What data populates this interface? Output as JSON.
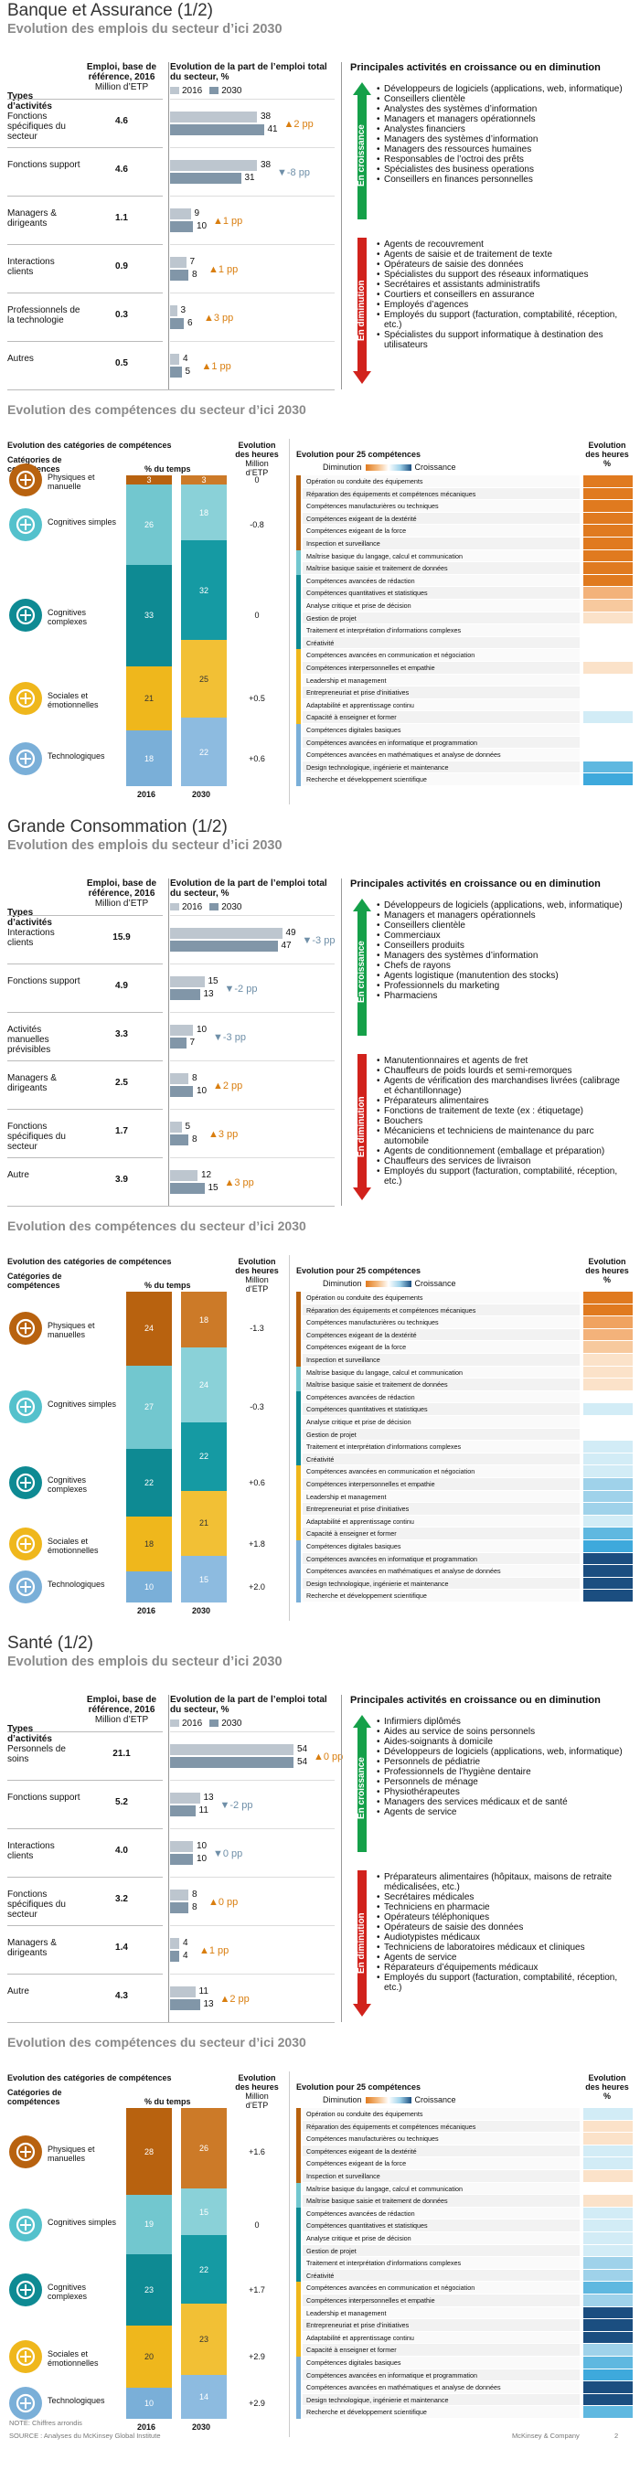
{
  "sections": [
    {
      "title": "Banque et Assurance (1/2)",
      "emploi_title": "Evolution des emplois du secteur d’ici 2030",
      "comp_title": "Evolution des compétences du secteur d’ici 2030",
      "emploi_rows": [
        {
          "label": "Fonctions spécifiques du secteur",
          "base": "4.6",
          "v2016": 38,
          "v2030": 41,
          "delta": "▲2 pp",
          "dir": "up"
        },
        {
          "label": "Fonctions support",
          "base": "4.6",
          "v2016": 38,
          "v2030": 31,
          "delta": "▼-8 pp",
          "dir": "down"
        },
        {
          "label": "Managers & dirigeants",
          "base": "1.1",
          "v2016": 9,
          "v2030": 10,
          "delta": "▲1 pp",
          "dir": "up"
        },
        {
          "label": "Interactions clients",
          "base": "0.9",
          "v2016": 7,
          "v2030": 8,
          "delta": "▲1 pp",
          "dir": "up"
        },
        {
          "label": "Professionnels de la technologie",
          "base": "0.3",
          "v2016": 3,
          "v2030": 6,
          "delta": "▲3 pp",
          "dir": "up"
        },
        {
          "label": "Autres",
          "base": "0.5",
          "v2016": 4,
          "v2030": 5,
          "delta": "▲1 pp",
          "dir": "up"
        }
      ],
      "croissance": [
        "Développeurs de logiciels (applications, web, informatique)",
        "Conseillers clientèle",
        "Analystes des systèmes d’information",
        "Managers et managers opérationnels",
        "Analystes financiers",
        "Managers des systèmes d’information",
        "Managers des ressources humaines",
        "Responsables de l’octroi des prêts",
        "Spécialistes des business operations",
        "Conseillers en finances personnelles"
      ],
      "diminution": [
        "Agents de recouvrement",
        "Agents de saisie et de traitement de texte",
        "Opérateurs de saisie des données",
        "Spécialistes du support des réseaux informatiques",
        "Secrétaires et assistants administratifs",
        "Courtiers et conseillers en assurance",
        "Employés d’agences",
        "Employés du support (facturation, comptabilité, réception, etc.)",
        "Spécialistes du support informatique à destination des utilisateurs"
      ],
      "comp_rows": [
        {
          "label": "Physiques et manuelle",
          "v2016": 3,
          "v2030": 3,
          "delta": "0"
        },
        {
          "label": "Cognitives simples",
          "v2016": 26,
          "v2030": 18,
          "delta": "-0.8"
        },
        {
          "label": "Cognitives complexes",
          "v2016": 33,
          "v2030": 32,
          "delta": "0"
        },
        {
          "label": "Sociales et émotionnelles",
          "v2016": 21,
          "v2030": 25,
          "delta": "+0.5"
        },
        {
          "label": "Technologiques",
          "v2016": 18,
          "v2030": 22,
          "delta": "+0.6"
        }
      ],
      "evo_colors": [
        "#e07a1f",
        "#e07a1f",
        "#e07a1f",
        "#e07a1f",
        "#e07a1f",
        "#e07a1f",
        "#e07a1f",
        "#e07a1f",
        "#e07a1f",
        "#f3b27a",
        "#f7c99e",
        "#fbe2c9",
        "#fff",
        "#fff",
        "#fff",
        "#fbe2c9",
        "#fff",
        "#fff",
        "#fff",
        "#d2ecf6",
        "#fff",
        "#fff",
        "#fff",
        "#5fb8e0",
        "#3ea9dc"
      ]
    },
    {
      "title": "Grande Consommation  (1/2)",
      "emploi_title": "Evolution des emplois du secteur d’ici 2030",
      "comp_title": "Evolution des compétences du secteur d’ici 2030",
      "emploi_rows": [
        {
          "label": "Interactions clients",
          "base": "15.9",
          "v2016": 49,
          "v2030": 47,
          "delta": "▼-3 pp",
          "dir": "down"
        },
        {
          "label": "Fonctions support",
          "base": "4.9",
          "v2016": 15,
          "v2030": 13,
          "delta": "▼-2 pp",
          "dir": "down"
        },
        {
          "label": "Activités manuelles prévisibles",
          "base": "3.3",
          "v2016": 10,
          "v2030": 7,
          "delta": "▼-3 pp",
          "dir": "down"
        },
        {
          "label": "Managers & dirigeants",
          "base": "2.5",
          "v2016": 8,
          "v2030": 10,
          "delta": "▲2 pp",
          "dir": "up"
        },
        {
          "label": "Fonctions spécifiques du secteur",
          "base": "1.7",
          "v2016": 5,
          "v2030": 8,
          "delta": "▲3 pp",
          "dir": "up"
        },
        {
          "label": "Autre",
          "base": "3.9",
          "v2016": 12,
          "v2030": 15,
          "delta": "▲3 pp",
          "dir": "up"
        }
      ],
      "croissance": [
        "Développeurs de logiciels (applications, web, informatique)",
        "Managers et managers opérationnels",
        "Conseillers clientèle",
        "Commerciaux",
        "Conseillers produits",
        "Managers des systèmes d’information",
        "Chefs de rayons",
        "Agents logistique (manutention des stocks)",
        "Professionnels du marketing",
        "Pharmaciens"
      ],
      "diminution": [
        "Manutentionnaires et agents de fret",
        "Chauffeurs de poids lourds et semi-remorques",
        "Agents de vérification des marchandises livrées (calibrage et échantillonnage)",
        "Préparateurs alimentaires",
        "Fonctions de traitement de texte (ex : étiquetage)",
        "Bouchers",
        "Mécaniciens et techniciens de maintenance du parc automobile",
        "Agents de conditionnement (emballage et préparation)",
        "Chauffeurs des services de livraison",
        "Employés du support (facturation, comptabilité, réception, etc.)"
      ],
      "comp_rows": [
        {
          "label": "Physiques et manuelles",
          "v2016": 24,
          "v2030": 18,
          "delta": "-1.3"
        },
        {
          "label": "Cognitives simples",
          "v2016": 27,
          "v2030": 24,
          "delta": "-0.3"
        },
        {
          "label": "Cognitives complexes",
          "v2016": 22,
          "v2030": 22,
          "delta": "+0.6"
        },
        {
          "label": "Sociales et émotionnelles",
          "v2016": 18,
          "v2030": 21,
          "delta": "+1.8"
        },
        {
          "label": "Technologiques",
          "v2016": 10,
          "v2030": 15,
          "delta": "+2.0"
        }
      ],
      "evo_colors": [
        "#e07a1f",
        "#e07a1f",
        "#f0a360",
        "#f3b27a",
        "#f7c99e",
        "#fbe2c9",
        "#fbe2c9",
        "#fbe2c9",
        "#fff",
        "#d2ecf6",
        "#fff",
        "#fff",
        "#d2ecf6",
        "#d2ecf6",
        "#d2ecf6",
        "#9fd2ea",
        "#9fd2ea",
        "#9fd2ea",
        "#d2ecf6",
        "#5fb8e0",
        "#3ea9dc",
        "#1b4e80",
        "#1b4e80",
        "#1b4e80",
        "#1b4e80"
      ]
    },
    {
      "title": "Santé (1/2)",
      "emploi_title": "Evolution des emplois du secteur d’ici 2030",
      "comp_title": "Evolution des compétences du secteur d’ici 2030",
      "emploi_rows": [
        {
          "label": "Personnels de soins",
          "base": "21.1",
          "v2016": 54,
          "v2030": 54,
          "delta": "▲0 pp",
          "dir": "up"
        },
        {
          "label": "Fonctions support",
          "base": "5.2",
          "v2016": 13,
          "v2030": 11,
          "delta": "▼-2 pp",
          "dir": "down"
        },
        {
          "label": "Interactions clients",
          "base": "4.0",
          "v2016": 10,
          "v2030": 10,
          "delta": "▼0 pp",
          "dir": "down"
        },
        {
          "label": "Fonctions spécifiques du secteur",
          "base": "3.2",
          "v2016": 8,
          "v2030": 8,
          "delta": "▲0 pp",
          "dir": "up"
        },
        {
          "label": "Managers & dirigeants",
          "base": "1.4",
          "v2016": 4,
          "v2030": 4,
          "delta": "▲1 pp",
          "dir": "up"
        },
        {
          "label": "Autre",
          "base": "4.3",
          "v2016": 11,
          "v2030": 13,
          "delta": "▲2 pp",
          "dir": "up"
        }
      ],
      "croissance": [
        "Infirmiers diplômés",
        "Aides au service de soins personnels",
        "Aides-soignants à domicile",
        "Développeurs de logiciels (applications, web, informatique)",
        "Personnels de pédiatrie",
        "Professionnels de l’hygiène dentaire",
        "Personnels de ménage",
        "Physiothérapeutes",
        "Managers des services médicaux et de santé",
        "Agents de service"
      ],
      "diminution": [
        "Préparateurs alimentaires (hôpitaux, maisons de retraite médicalisées, etc.)",
        "Secrétaires médicales",
        "Techniciens en pharmacie",
        "Opérateurs téléphoniques",
        "Opérateurs de saisie des données",
        "Audiotypistes médicaux",
        "Techniciens de laboratoires médicaux et cliniques",
        "Agents de service",
        "Réparateurs d’équipements médicaux",
        "Employés du support (facturation, comptabilité, réception, etc.)"
      ],
      "comp_rows": [
        {
          "label": "Physiques et manuelles",
          "v2016": 28,
          "v2030": 26,
          "delta": "+1.6"
        },
        {
          "label": "Cognitives simples",
          "v2016": 19,
          "v2030": 15,
          "delta": "0"
        },
        {
          "label": "Cognitives complexes",
          "v2016": 23,
          "v2030": 22,
          "delta": "+1.7"
        },
        {
          "label": "Sociales et émotionnelles",
          "v2016": 20,
          "v2030": 23,
          "delta": "+2.9"
        },
        {
          "label": "Technologiques",
          "v2016": 10,
          "v2030": 14,
          "delta": "+2.9"
        }
      ],
      "evo_colors": [
        "#d2ecf6",
        "#fbe2c9",
        "#fbe2c9",
        "#d2ecf6",
        "#d2ecf6",
        "#fbe2c9",
        "#fff",
        "#fbe2c9",
        "#d2ecf6",
        "#d2ecf6",
        "#d2ecf6",
        "#d2ecf6",
        "#9fd2ea",
        "#9fd2ea",
        "#5fb8e0",
        "#9fd2ea",
        "#1b4e80",
        "#1b4e80",
        "#1b4e80",
        "#9fd2ea",
        "#5fb8e0",
        "#3ea9dc",
        "#1b4e80",
        "#1b4e80",
        "#5fb8e0"
      ]
    }
  ],
  "labels": {
    "types": "Types d’activités",
    "emploi_base": "Emploi, base de référence, 2016",
    "million": "Million d’ETP",
    "evol_part": "Evolution de la part de l’emploi total du secteur, %",
    "y2016": "2016",
    "y2030": "2030",
    "principales": "Principales activités en croissance ou en diminution",
    "en_croissance": "En croissance",
    "en_diminution": "En diminution",
    "comp_head": "Evolution des catégories de compétences",
    "cat_comp": "Catégories de compétences",
    "pct_temps": "% du temps",
    "evol_heures": "Evolution des heures",
    "million_etp": "Million d’ETP",
    "evol25": "Evolution pour 25 compétences",
    "diminution": "Diminution",
    "croissance": "Croissance",
    "evol_heures_pct": "Evolution des heures %"
  },
  "skills": [
    "Opération ou conduite des équipements",
    "Réparation des équipements et compétences mécaniques",
    "Compétences manufacturières ou techniques",
    "Compétences exigeant de la dextérité",
    "Compétences exigeant de la force",
    "Inspection et surveillance",
    "Maîtrise basique du langage, calcul et communication",
    "Maîtrise basique saisie et traitement de données",
    "Compétences avancées de rédaction",
    "Compétences quantitatives et statistiques",
    "Analyse critique et prise de décision",
    "Gestion de projet",
    "Traitement et interprétation d’informations complexes",
    "Créativité",
    "Compétences avancées en communication et négociation",
    "Compétences interpersonnelles et empathie",
    "Leadership et management",
    "Entrepreneuriat et prise d’initiatives",
    "Adaptabilité et apprentissage continu",
    "Capacité à enseigner et former",
    "Compétences digitales basiques",
    "Compétences avancées en informatique et programmation",
    "Compétences avancées en mathématiques et analyse de données",
    "Design technologique, ingénierie et maintenance",
    "Recherche et développement scientifique"
  ],
  "footer": {
    "note": "NOTE: Chiffres arrondis",
    "source": "SOURCE : Analyses du McKinsey Global Institute",
    "brand": "McKinsey & Company",
    "page": "2"
  }
}
